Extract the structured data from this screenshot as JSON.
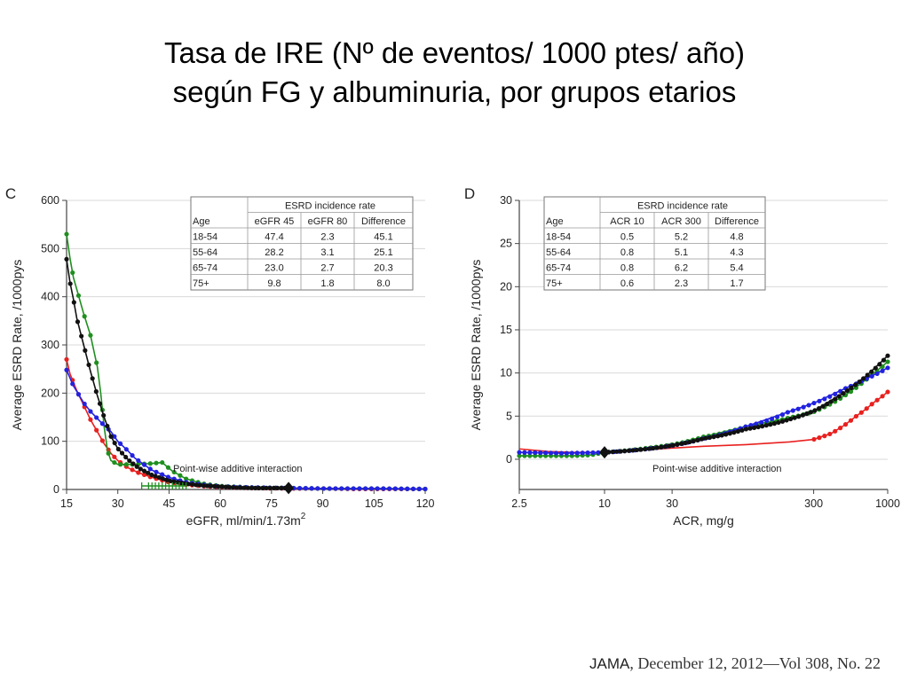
{
  "title_line1": "Tasa de IRE (Nº de eventos/ 1000 ptes/ año)",
  "title_line2": "según FG y albuminuria, por grupos etarios",
  "footer": {
    "journal": "JAMA",
    "citation": ", December 12, 2012—Vol 308, No. 22"
  },
  "colors": {
    "18-54": "#e8211f",
    "55-64": "#2222e0",
    "65-74": "#1f8f1f",
    "75+": "#111111"
  },
  "chart_data": [
    {
      "panel": "C",
      "type": "line",
      "xlabel": "eGFR, ml/min/1.73m",
      "xlabel_superscript": "2",
      "ylabel": "Average ESRD Rate, /1000pys",
      "xlim": [
        15,
        120
      ],
      "ylim": [
        0,
        600
      ],
      "xticks": [
        "15",
        "30",
        "45",
        "60",
        "75",
        "90",
        "105",
        "120"
      ],
      "yticks": [
        "0",
        "100",
        "200",
        "300",
        "400",
        "500",
        "600"
      ],
      "grid": "horizontal",
      "annotation": "Point-wise additive interaction",
      "interaction_x": [
        37,
        39,
        40,
        41,
        42,
        43,
        44,
        45,
        46,
        47,
        48,
        49,
        50
      ],
      "reference_point": {
        "x": 80,
        "y": 3
      },
      "series": [
        {
          "name": "18-54",
          "x": [
            15,
            16,
            18,
            20,
            22,
            24,
            26,
            28,
            30,
            33,
            36,
            40,
            45,
            50,
            55,
            60,
            70,
            80,
            90,
            100,
            105,
            120
          ],
          "y": [
            270,
            240,
            205,
            175,
            145,
            120,
            95,
            75,
            60,
            45,
            35,
            25,
            15,
            10,
            7,
            5,
            3,
            2,
            2,
            1,
            1,
            1
          ]
        },
        {
          "name": "55-64",
          "x": [
            15,
            17,
            20,
            22,
            25,
            28,
            30,
            33,
            35,
            40,
            45,
            50,
            55,
            60,
            70,
            80,
            90,
            100,
            105,
            120
          ],
          "y": [
            248,
            215,
            180,
            162,
            140,
            120,
            100,
            80,
            65,
            40,
            25,
            15,
            10,
            6,
            4,
            3,
            2,
            2,
            2,
            1
          ]
        },
        {
          "name": "65-74",
          "x": [
            15,
            16,
            17,
            18,
            20,
            22,
            24,
            25,
            26,
            27,
            28,
            30,
            32,
            35,
            40,
            43,
            44,
            46,
            50,
            55,
            60,
            70,
            80,
            90,
            100,
            105,
            120
          ],
          "y": [
            530,
            480,
            440,
            415,
            365,
            320,
            255,
            200,
            130,
            80,
            60,
            52,
            52,
            52,
            54,
            56,
            50,
            38,
            22,
            12,
            7,
            4,
            3,
            2,
            2,
            2,
            1
          ]
        },
        {
          "name": "75+",
          "x": [
            15,
            16,
            17,
            18,
            20,
            22,
            24,
            26,
            28,
            30,
            33,
            36,
            40,
            45,
            50,
            55,
            60,
            65,
            70,
            75,
            80
          ],
          "y": [
            478,
            430,
            395,
            355,
            300,
            245,
            195,
            150,
            110,
            85,
            62,
            45,
            30,
            18,
            12,
            8,
            6,
            4,
            3,
            3,
            3
          ]
        }
      ],
      "table": {
        "group_header": "ESRD incidence rate",
        "columns": [
          "Age",
          "eGFR 45",
          "eGFR 80",
          "Difference"
        ],
        "rows": [
          [
            "18-54",
            "47.4",
            "2.3",
            "45.1"
          ],
          [
            "55-64",
            "28.2",
            "3.1",
            "25.1"
          ],
          [
            "65-74",
            "23.0",
            "2.7",
            "20.3"
          ],
          [
            "75+",
            "9.8",
            "1.8",
            "8.0"
          ]
        ]
      }
    },
    {
      "panel": "D",
      "type": "line",
      "xlabel": "ACR, mg/g",
      "ylabel": "Average ESRD Rate, /1000pys",
      "xscale": "log",
      "xlim": [
        2.5,
        1000
      ],
      "ylim": [
        -3.5,
        30
      ],
      "xticks": [
        "2.5",
        "10",
        "30",
        "300",
        "1000"
      ],
      "yticks": [
        "0",
        "5",
        "10",
        "15",
        "20",
        "25",
        "30"
      ],
      "grid": "horizontal",
      "annotation": "Point-wise additive interaction",
      "reference_point": {
        "x": 10,
        "y": 0.8
      },
      "series": [
        {
          "name": "18-54",
          "x": [
            2.5,
            4,
            6,
            10,
            20,
            30,
            50,
            100,
            200,
            300,
            400,
            500,
            600,
            700,
            800,
            900,
            1000
          ],
          "y": [
            1.2,
            0.9,
            0.8,
            0.8,
            1.1,
            1.3,
            1.5,
            1.7,
            2.0,
            2.3,
            3.0,
            4.0,
            5.0,
            5.8,
            6.6,
            7.2,
            7.8
          ]
        },
        {
          "name": "55-64",
          "x": [
            2.5,
            5,
            10,
            20,
            30,
            50,
            100,
            200,
            300,
            500,
            700,
            1000
          ],
          "y": [
            0.8,
            0.7,
            0.8,
            1.2,
            1.6,
            2.4,
            3.8,
            5.5,
            6.5,
            8.2,
            9.3,
            10.6
          ]
        },
        {
          "name": "65-74",
          "x": [
            2.5,
            5,
            6,
            8,
            10,
            20,
            30,
            50,
            100,
            200,
            300,
            500,
            700,
            1000
          ],
          "y": [
            0.4,
            0.4,
            0.4,
            0.5,
            0.8,
            1.3,
            1.7,
            2.6,
            3.8,
            4.8,
            5.5,
            7.4,
            9.2,
            11.3
          ]
        },
        {
          "name": "75+",
          "x": [
            10,
            20,
            30,
            50,
            100,
            200,
            300,
            500,
            700,
            1000
          ],
          "y": [
            0.8,
            1.2,
            1.6,
            2.4,
            3.5,
            4.6,
            5.6,
            7.8,
            9.6,
            12.0
          ]
        }
      ],
      "table": {
        "group_header": "ESRD incidence rate",
        "columns": [
          "Age",
          "ACR 10",
          "ACR 300",
          "Difference"
        ],
        "rows": [
          [
            "18-54",
            "0.5",
            "5.2",
            "4.8"
          ],
          [
            "55-64",
            "0.8",
            "5.1",
            "4.3"
          ],
          [
            "65-74",
            "0.8",
            "6.2",
            "5.4"
          ],
          [
            "75+",
            "0.6",
            "2.3",
            "1.7"
          ]
        ]
      }
    }
  ]
}
